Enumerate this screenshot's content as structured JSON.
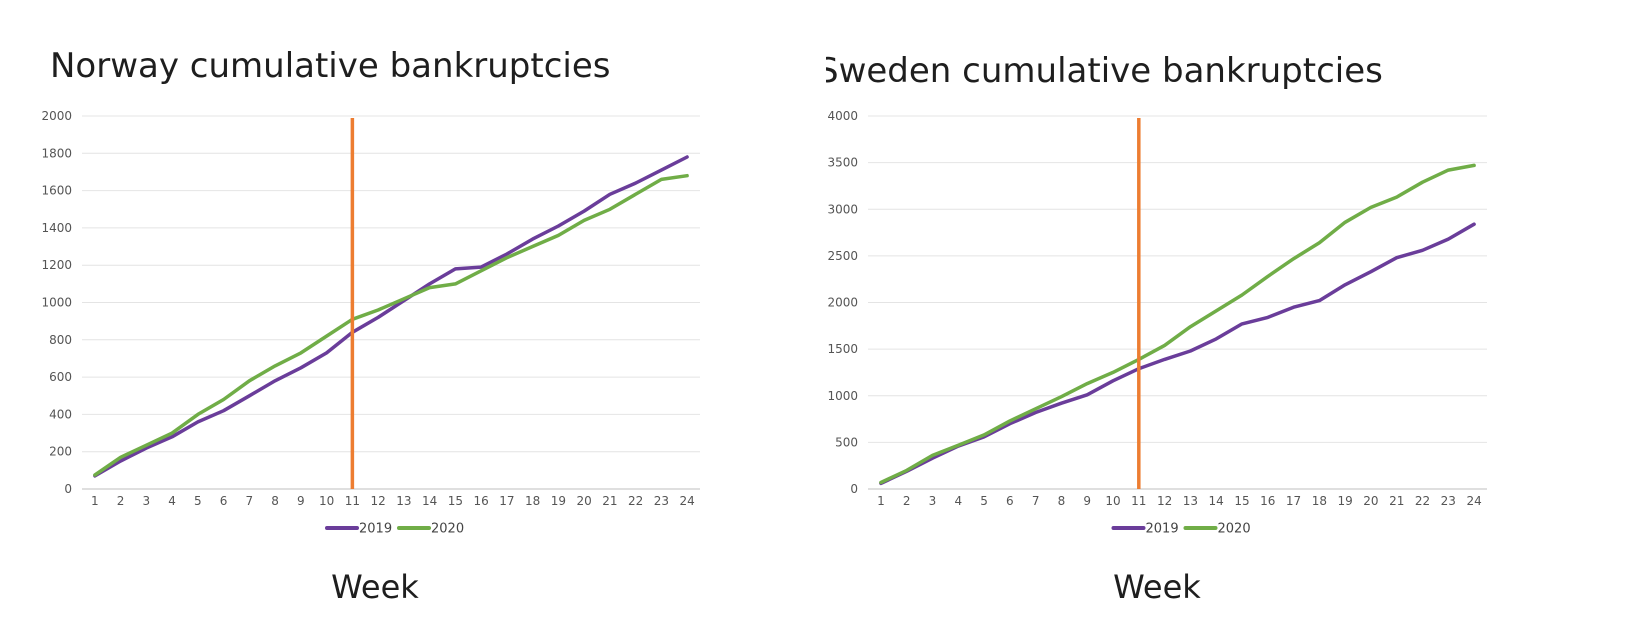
{
  "chart_data": [
    {
      "id": "norway",
      "type": "line",
      "title": "Norway cumulative bankruptcies",
      "xlabel": "Week",
      "ylabel": "",
      "x": [
        1,
        2,
        3,
        4,
        5,
        6,
        7,
        8,
        9,
        10,
        11,
        12,
        13,
        14,
        15,
        16,
        17,
        18,
        19,
        20,
        21,
        22,
        23,
        24
      ],
      "ylim": [
        0,
        2000
      ],
      "yticks": [
        0,
        200,
        400,
        600,
        800,
        1000,
        1200,
        1400,
        1600,
        1800,
        2000
      ],
      "grid": true,
      "legend": "bottom",
      "marker_week": 11,
      "marker_color": "#ED7D31",
      "series": [
        {
          "name": "2019",
          "color": "#6A3D9A",
          "values": [
            70,
            150,
            220,
            280,
            360,
            420,
            500,
            580,
            650,
            730,
            840,
            920,
            1010,
            1100,
            1180,
            1190,
            1260,
            1340,
            1410,
            1490,
            1580,
            1640,
            1710,
            1780
          ]
        },
        {
          "name": "2020",
          "color": "#70AD47",
          "values": [
            75,
            170,
            235,
            300,
            400,
            480,
            580,
            660,
            730,
            820,
            910,
            960,
            1020,
            1080,
            1100,
            1170,
            1240,
            1300,
            1360,
            1440,
            1500,
            1580,
            1660,
            1680
          ]
        }
      ]
    },
    {
      "id": "sweden",
      "type": "line",
      "title": "Sweden cumulative bankruptcies",
      "xlabel": "Week",
      "ylabel": "",
      "x": [
        1,
        2,
        3,
        4,
        5,
        6,
        7,
        8,
        9,
        10,
        11,
        12,
        13,
        14,
        15,
        16,
        17,
        18,
        19,
        20,
        21,
        22,
        23,
        24
      ],
      "ylim": [
        0,
        4000
      ],
      "yticks": [
        0,
        500,
        1000,
        1500,
        2000,
        2500,
        3000,
        3500,
        4000
      ],
      "grid": true,
      "legend": "bottom",
      "marker_week": 11,
      "marker_color": "#ED7D31",
      "series": [
        {
          "name": "2019",
          "color": "#6A3D9A",
          "values": [
            60,
            190,
            330,
            460,
            560,
            700,
            820,
            920,
            1010,
            1160,
            1290,
            1390,
            1480,
            1610,
            1770,
            1840,
            1950,
            2020,
            2190,
            2330,
            2480,
            2560,
            2680,
            2840
          ]
        },
        {
          "name": "2020",
          "color": "#70AD47",
          "values": [
            70,
            200,
            360,
            470,
            580,
            730,
            860,
            990,
            1130,
            1250,
            1390,
            1540,
            1740,
            1910,
            2080,
            2280,
            2470,
            2640,
            2860,
            3020,
            3130,
            3290,
            3420,
            3470
          ]
        }
      ]
    }
  ]
}
